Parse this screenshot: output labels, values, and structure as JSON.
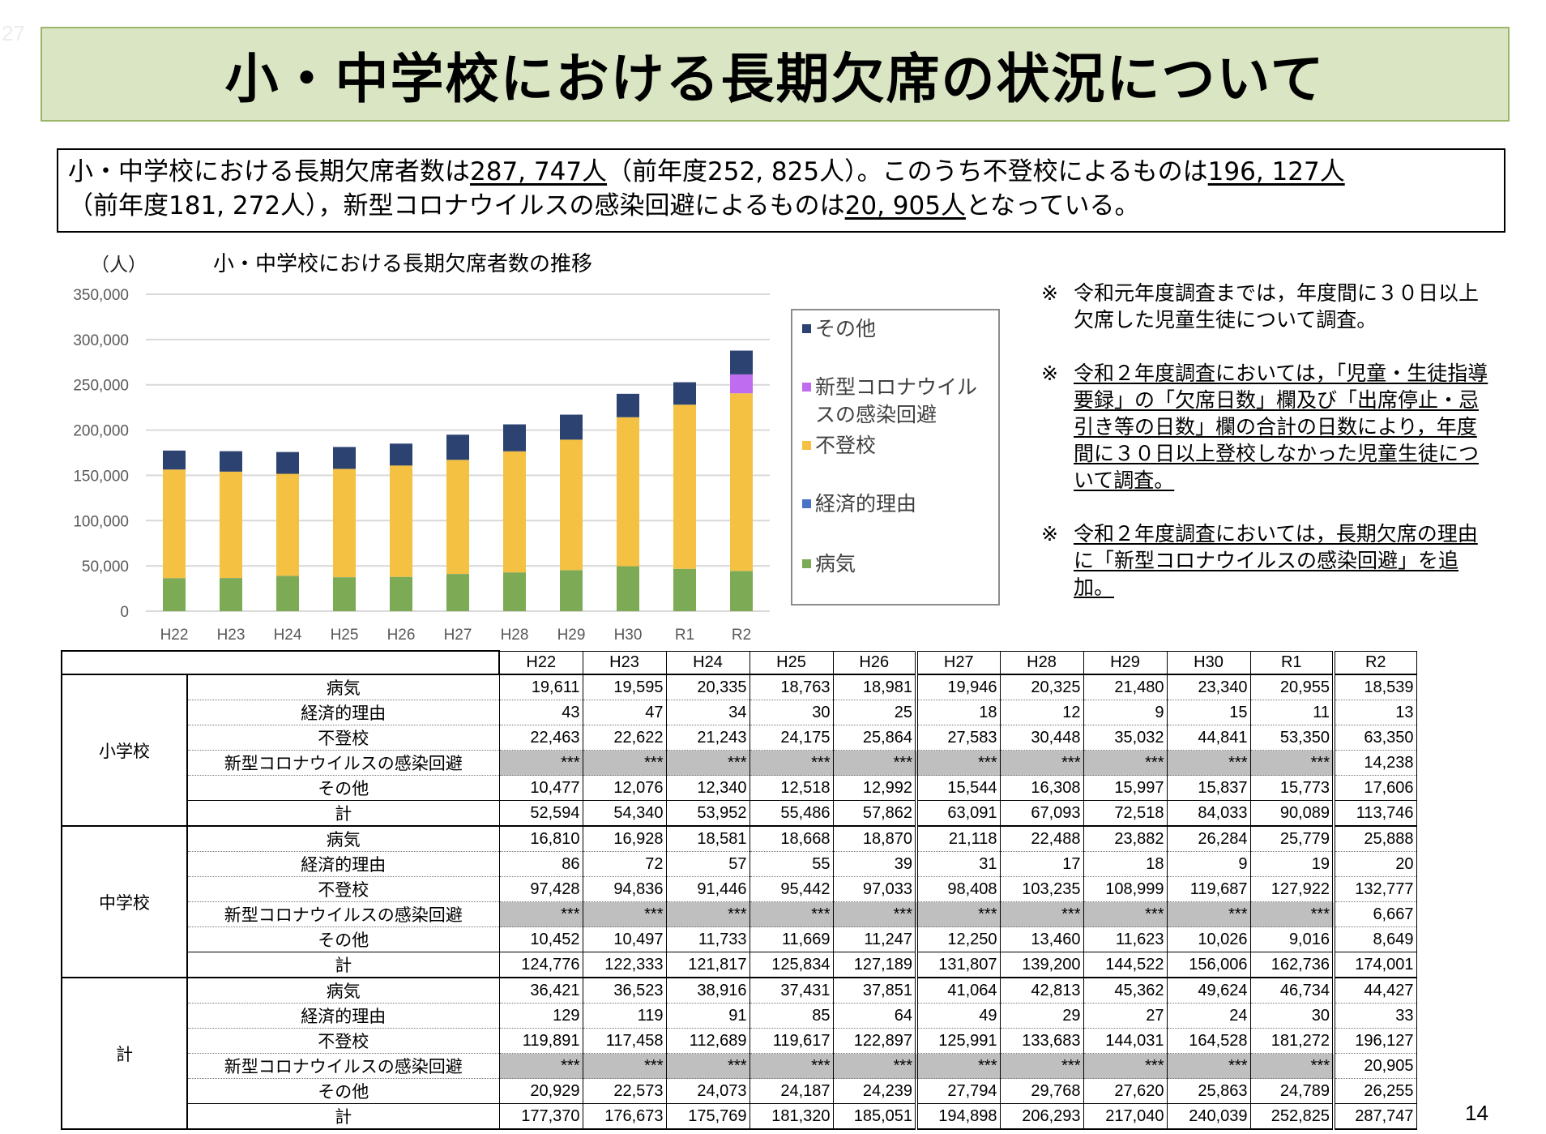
{
  "corner_label": "27",
  "page_title": "小・中学校における長期欠席の状況について",
  "summary": {
    "line1_prefix": "小・中学校における長期欠席者数は",
    "total": "287, 747人",
    "line1_mid": "（前年度252, 825人）。このうち不登校によるものは",
    "futoko": "196, 127人",
    "line2_prefix": "（前年度181, 272人），新型コロナウイルスの感染回避によるものは",
    "covid": "20, 905人",
    "line2_suffix": "となっている。"
  },
  "notes": [
    {
      "mark": "※",
      "text": "令和元年度調査までは，年度間に３０日以上欠席した児童生徒について調査。",
      "underlined": false
    },
    {
      "mark": "※",
      "text": "令和２年度調査においては，「児童・生徒指導要録」の「欠席日数」欄及び「出席停止・忌引き等の日数」欄の合計の日数により，年度間に３０日以上登校しなかった児童生徒について調査。",
      "underlined": true
    },
    {
      "mark": "※",
      "text": "令和２年度調査においては，長期欠席の理由に「新型コロナウイルスの感染回避」を追加。",
      "underlined": true
    }
  ],
  "chart_data": {
    "type": "bar",
    "stacked": true,
    "title": "小・中学校における長期欠席者数の推移",
    "ylabel": "（人）",
    "xlabel": "",
    "ylim": [
      0,
      350000
    ],
    "yticks": [
      0,
      50000,
      100000,
      150000,
      200000,
      250000,
      300000,
      350000
    ],
    "ytick_labels": [
      "0",
      "50,000",
      "100,000",
      "150,000",
      "200,000",
      "250,000",
      "300,000",
      "350,000"
    ],
    "grid": true,
    "legend_position": "right",
    "categories": [
      "H22",
      "H23",
      "H24",
      "H25",
      "H26",
      "H27",
      "H28",
      "H29",
      "H30",
      "R1",
      "R2"
    ],
    "series": [
      {
        "name": "病気",
        "color": "#7dab55",
        "values": [
          36421,
          36523,
          38916,
          37431,
          37851,
          41064,
          42813,
          45362,
          49624,
          46734,
          44427
        ]
      },
      {
        "name": "経済的理由",
        "color": "#4b72c4",
        "values": [
          129,
          119,
          91,
          85,
          64,
          49,
          29,
          27,
          24,
          30,
          33
        ]
      },
      {
        "name": "不登校",
        "color": "#f4c142",
        "values": [
          119891,
          117458,
          112689,
          119617,
          122897,
          125991,
          133683,
          144031,
          164528,
          181272,
          196127
        ]
      },
      {
        "name": "新型コロナウイルスの感染回避",
        "color": "#bf6cf0",
        "values": [
          0,
          0,
          0,
          0,
          0,
          0,
          0,
          0,
          0,
          0,
          20905
        ]
      },
      {
        "name": "その他",
        "color": "#2c4372",
        "values": [
          20929,
          22573,
          24073,
          24187,
          24239,
          27794,
          29768,
          27620,
          25863,
          24789,
          26255
        ]
      }
    ],
    "legend_order": [
      "その他",
      "新型コロナウイルスの感染回避",
      "不登校",
      "経済的理由",
      "病気"
    ]
  },
  "table": {
    "years": [
      "H22",
      "H23",
      "H24",
      "H25",
      "H26",
      "H27",
      "H28",
      "H29",
      "H30",
      "R1",
      "R2"
    ],
    "categories": [
      "病気",
      "経済的理由",
      "不登校",
      "新型コロナウイルスの感染回避",
      "その他",
      "計"
    ],
    "groups": [
      {
        "name": "小学校",
        "rows": [
          [
            "19,611",
            "19,595",
            "20,335",
            "18,763",
            "18,981",
            "19,946",
            "20,325",
            "21,480",
            "23,340",
            "20,955",
            "18,539"
          ],
          [
            "43",
            "47",
            "34",
            "30",
            "25",
            "18",
            "12",
            "9",
            "15",
            "11",
            "13"
          ],
          [
            "22,463",
            "22,622",
            "21,243",
            "24,175",
            "25,864",
            "27,583",
            "30,448",
            "35,032",
            "44,841",
            "53,350",
            "63,350"
          ],
          [
            "***",
            "***",
            "***",
            "***",
            "***",
            "***",
            "***",
            "***",
            "***",
            "***",
            "14,238"
          ],
          [
            "10,477",
            "12,076",
            "12,340",
            "12,518",
            "12,992",
            "15,544",
            "16,308",
            "15,997",
            "15,837",
            "15,773",
            "17,606"
          ],
          [
            "52,594",
            "54,340",
            "53,952",
            "55,486",
            "57,862",
            "63,091",
            "67,093",
            "72,518",
            "84,033",
            "90,089",
            "113,746"
          ]
        ]
      },
      {
        "name": "中学校",
        "rows": [
          [
            "16,810",
            "16,928",
            "18,581",
            "18,668",
            "18,870",
            "21,118",
            "22,488",
            "23,882",
            "26,284",
            "25,779",
            "25,888"
          ],
          [
            "86",
            "72",
            "57",
            "55",
            "39",
            "31",
            "17",
            "18",
            "9",
            "19",
            "20"
          ],
          [
            "97,428",
            "94,836",
            "91,446",
            "95,442",
            "97,033",
            "98,408",
            "103,235",
            "108,999",
            "119,687",
            "127,922",
            "132,777"
          ],
          [
            "***",
            "***",
            "***",
            "***",
            "***",
            "***",
            "***",
            "***",
            "***",
            "***",
            "6,667"
          ],
          [
            "10,452",
            "10,497",
            "11,733",
            "11,669",
            "11,247",
            "12,250",
            "13,460",
            "11,623",
            "10,026",
            "9,016",
            "8,649"
          ],
          [
            "124,776",
            "122,333",
            "121,817",
            "125,834",
            "127,189",
            "131,807",
            "139,200",
            "144,522",
            "156,006",
            "162,736",
            "174,001"
          ]
        ]
      },
      {
        "name": "計",
        "rows": [
          [
            "36,421",
            "36,523",
            "38,916",
            "37,431",
            "37,851",
            "41,064",
            "42,813",
            "45,362",
            "49,624",
            "46,734",
            "44,427"
          ],
          [
            "129",
            "119",
            "91",
            "85",
            "64",
            "49",
            "29",
            "27",
            "24",
            "30",
            "33"
          ],
          [
            "119,891",
            "117,458",
            "112,689",
            "119,617",
            "122,897",
            "125,991",
            "133,683",
            "144,031",
            "164,528",
            "181,272",
            "196,127"
          ],
          [
            "***",
            "***",
            "***",
            "***",
            "***",
            "***",
            "***",
            "***",
            "***",
            "***",
            "20,905"
          ],
          [
            "20,929",
            "22,573",
            "24,073",
            "24,187",
            "24,239",
            "27,794",
            "29,768",
            "27,620",
            "25,863",
            "24,789",
            "26,255"
          ],
          [
            "177,370",
            "176,673",
            "175,769",
            "181,320",
            "185,051",
            "194,898",
            "206,293",
            "217,040",
            "240,039",
            "252,825",
            "287,747"
          ]
        ]
      }
    ]
  },
  "page_number": "14"
}
